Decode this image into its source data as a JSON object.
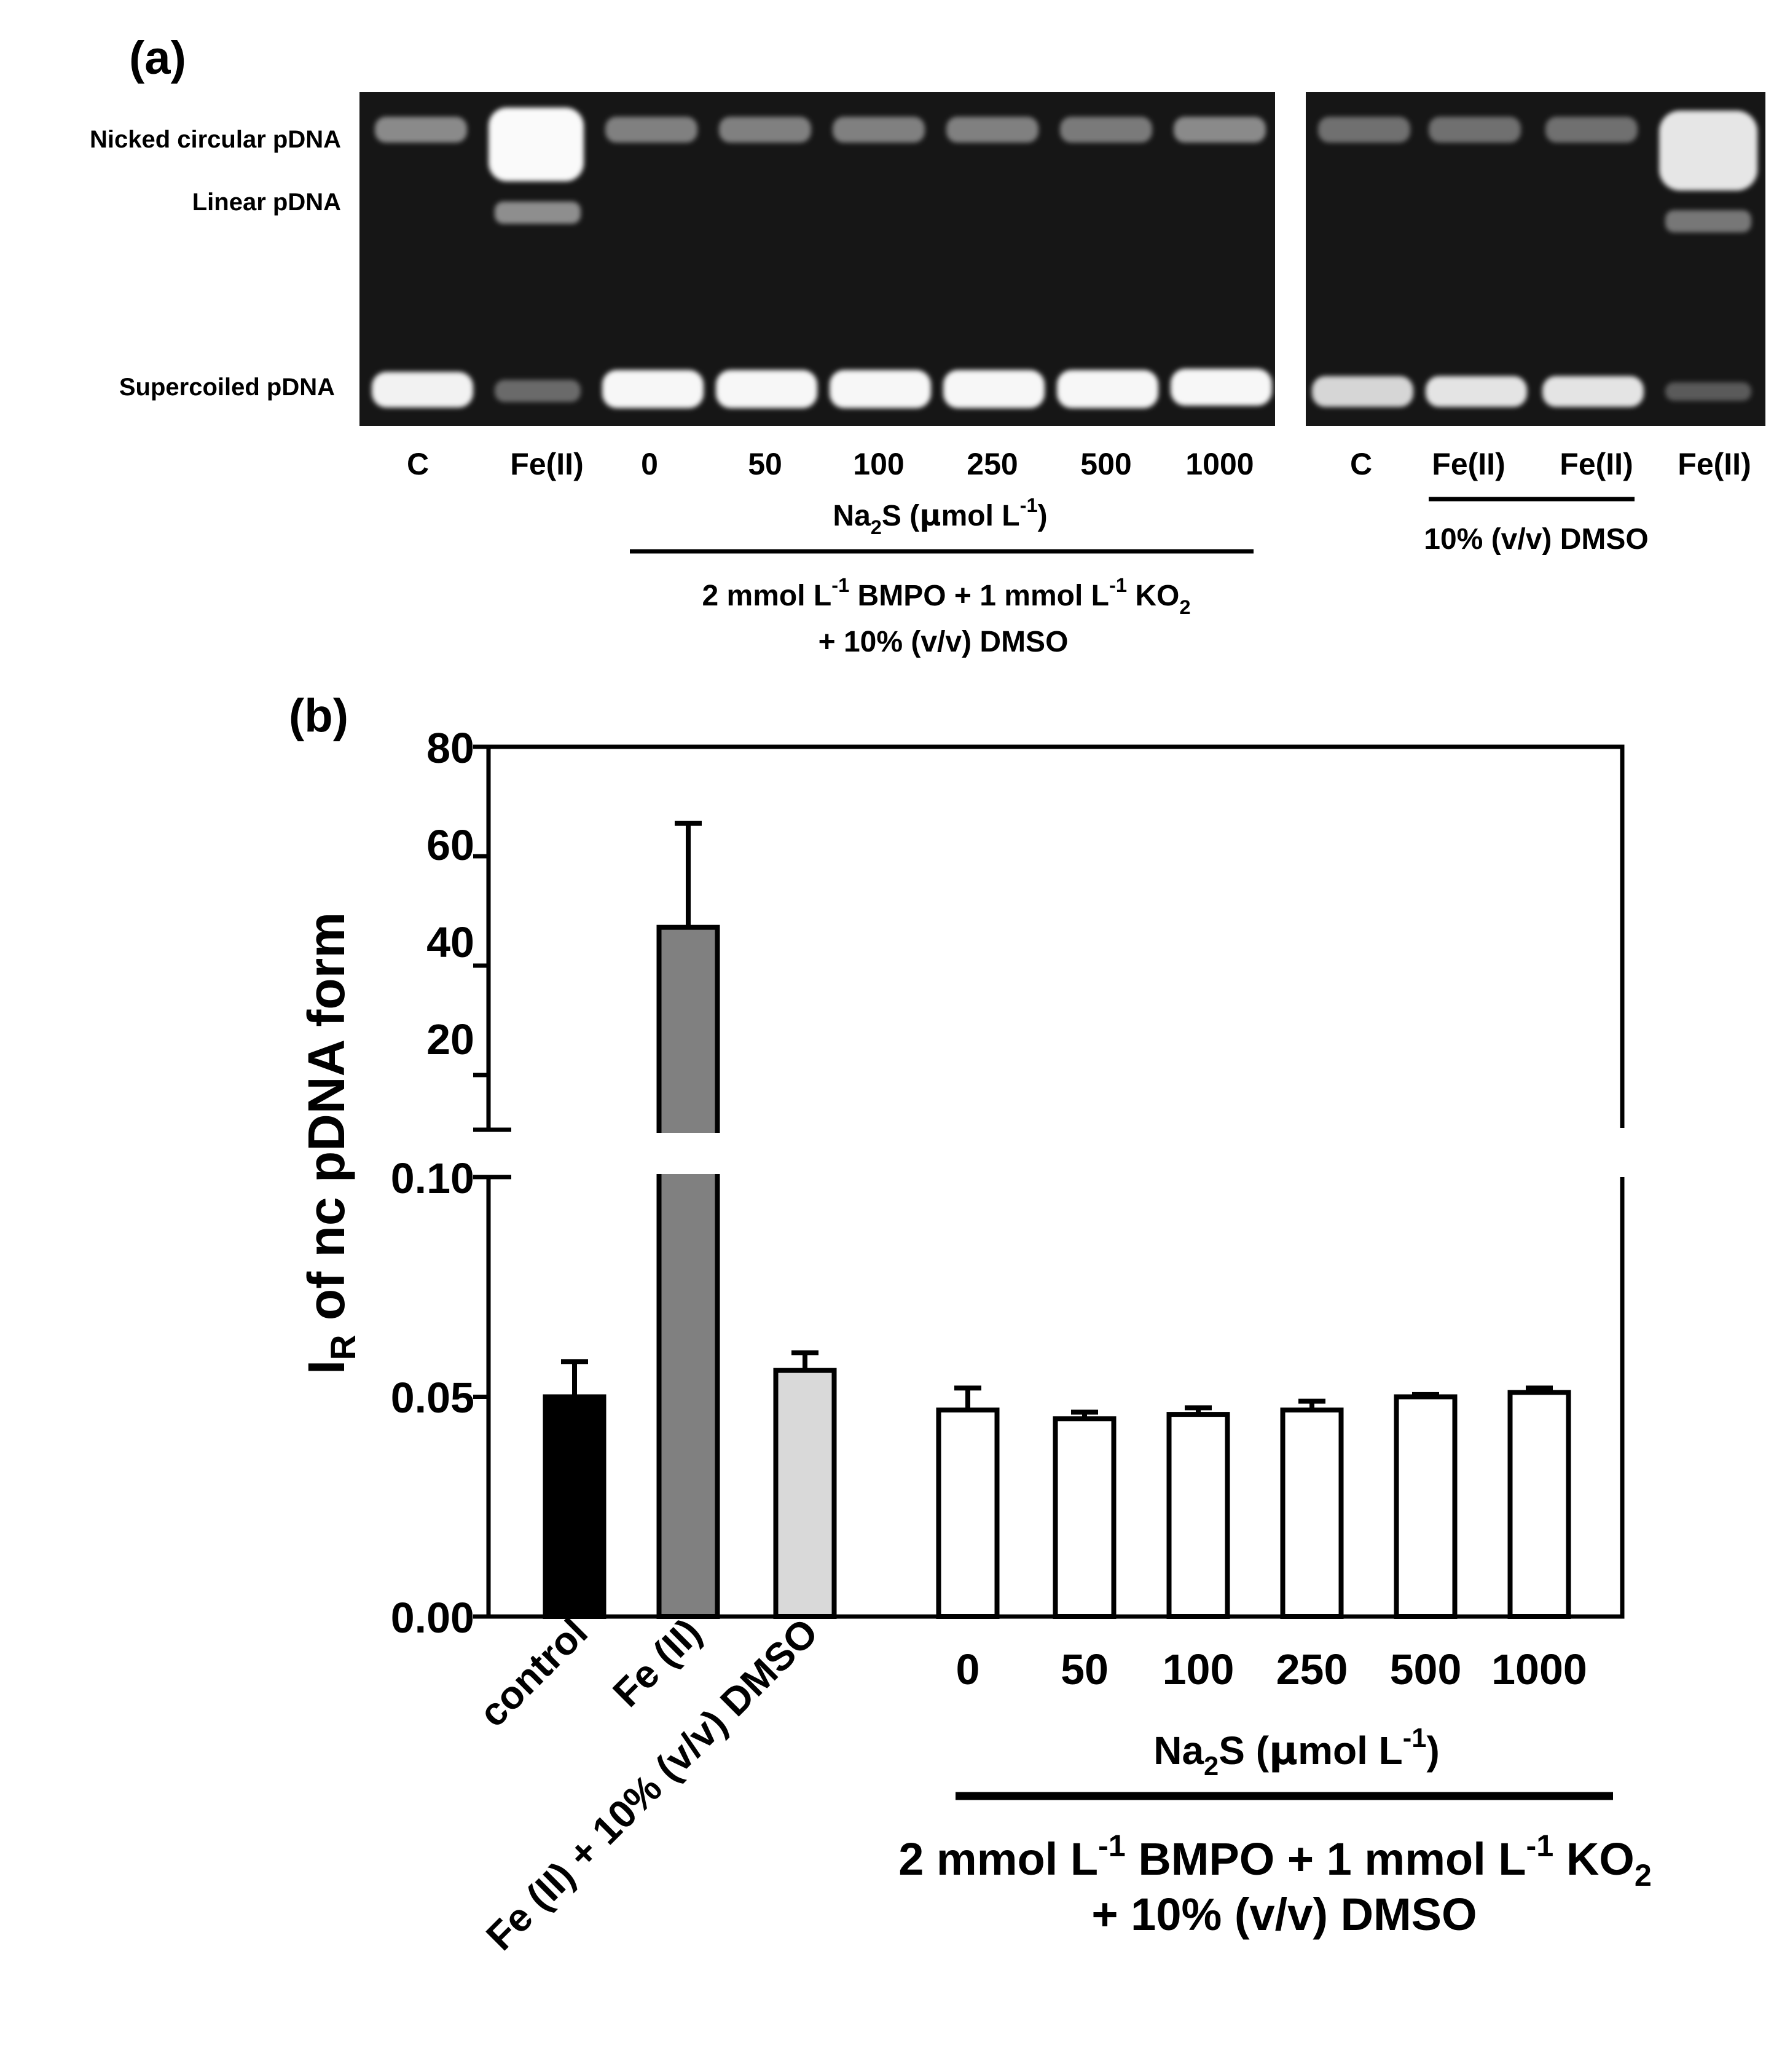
{
  "panel_a": {
    "label": "(a)",
    "band_labels": [
      "Nicked circular pDNA",
      "Linear pDNA",
      "Supercoiled pDNA"
    ],
    "gel1": {
      "lanes": [
        "C",
        "Fe(II)",
        "0",
        "50",
        "100",
        "250",
        "500",
        "1000"
      ],
      "na2s_label": {
        "pre": "Na",
        "sub": "2",
        "mid": "S (",
        "mu": "μ",
        "post": "mol L",
        "sup": "-1",
        "end": ")"
      },
      "condition_line1": {
        "a": "2 mmol L",
        "sup1": "-1",
        "b": " BMPO + 1 mmol L",
        "sup2": "-1",
        "c": " KO",
        "sub": "2"
      },
      "condition_line2": "+ 10% (v/v) DMSO"
    },
    "gel2": {
      "lanes": [
        "C",
        "Fe(II)",
        "Fe(II)",
        "Fe(II)"
      ],
      "condition": "10% (v/v) DMSO"
    }
  },
  "panel_b": {
    "label": "(b)",
    "ylabel": {
      "main": "I",
      "sub": "R",
      "rest": " of nc pDNA form"
    },
    "upper_ticks": [
      "80",
      "60",
      "40",
      "20"
    ],
    "lower_ticks": [
      "0.10",
      "0.05",
      "0.00"
    ],
    "rotated_labels": [
      "control",
      "Fe (II)",
      "Fe (II) + 10% (v/v) DMSO"
    ],
    "na2s_ticks": [
      "0",
      "50",
      "100",
      "250",
      "500",
      "1000"
    ],
    "na2s_label": {
      "pre": "Na",
      "sub": "2",
      "mid": "S (",
      "mu": "μ",
      "post": "mol L",
      "sup": "-1",
      "end": ")"
    },
    "condition_line1": {
      "a": "2 mmol L",
      "sup1": "-1",
      "b": " BMPO + 1 mmol L",
      "sup2": "-1",
      "c": " KO",
      "sub": "2"
    },
    "condition_line2": "+ 10% (v/v) DMSO"
  },
  "chart_data": {
    "type": "bar",
    "title": "",
    "ylabel": "IR of nc pDNA form",
    "xlabel": "Na2S (μmol L-1)",
    "y_axis_break": {
      "lower_range": [
        0,
        0.1
      ],
      "upper_range": [
        10,
        80
      ]
    },
    "categories": [
      "control",
      "Fe (II)",
      "Fe (II) + 10% (v/v) DMSO",
      "0",
      "50",
      "100",
      "250",
      "500",
      "1000"
    ],
    "values": [
      0.05,
      47,
      0.056,
      0.047,
      0.045,
      0.046,
      0.047,
      0.05,
      0.051
    ],
    "errors": [
      0.008,
      19,
      0.004,
      0.005,
      0.0015,
      0.0015,
      0.002,
      0.0005,
      0.001
    ],
    "colors": [
      "#000000",
      "#808080",
      "#d9d9d9",
      "#ffffff",
      "#ffffff",
      "#ffffff",
      "#ffffff",
      "#ffffff",
      "#ffffff"
    ]
  }
}
